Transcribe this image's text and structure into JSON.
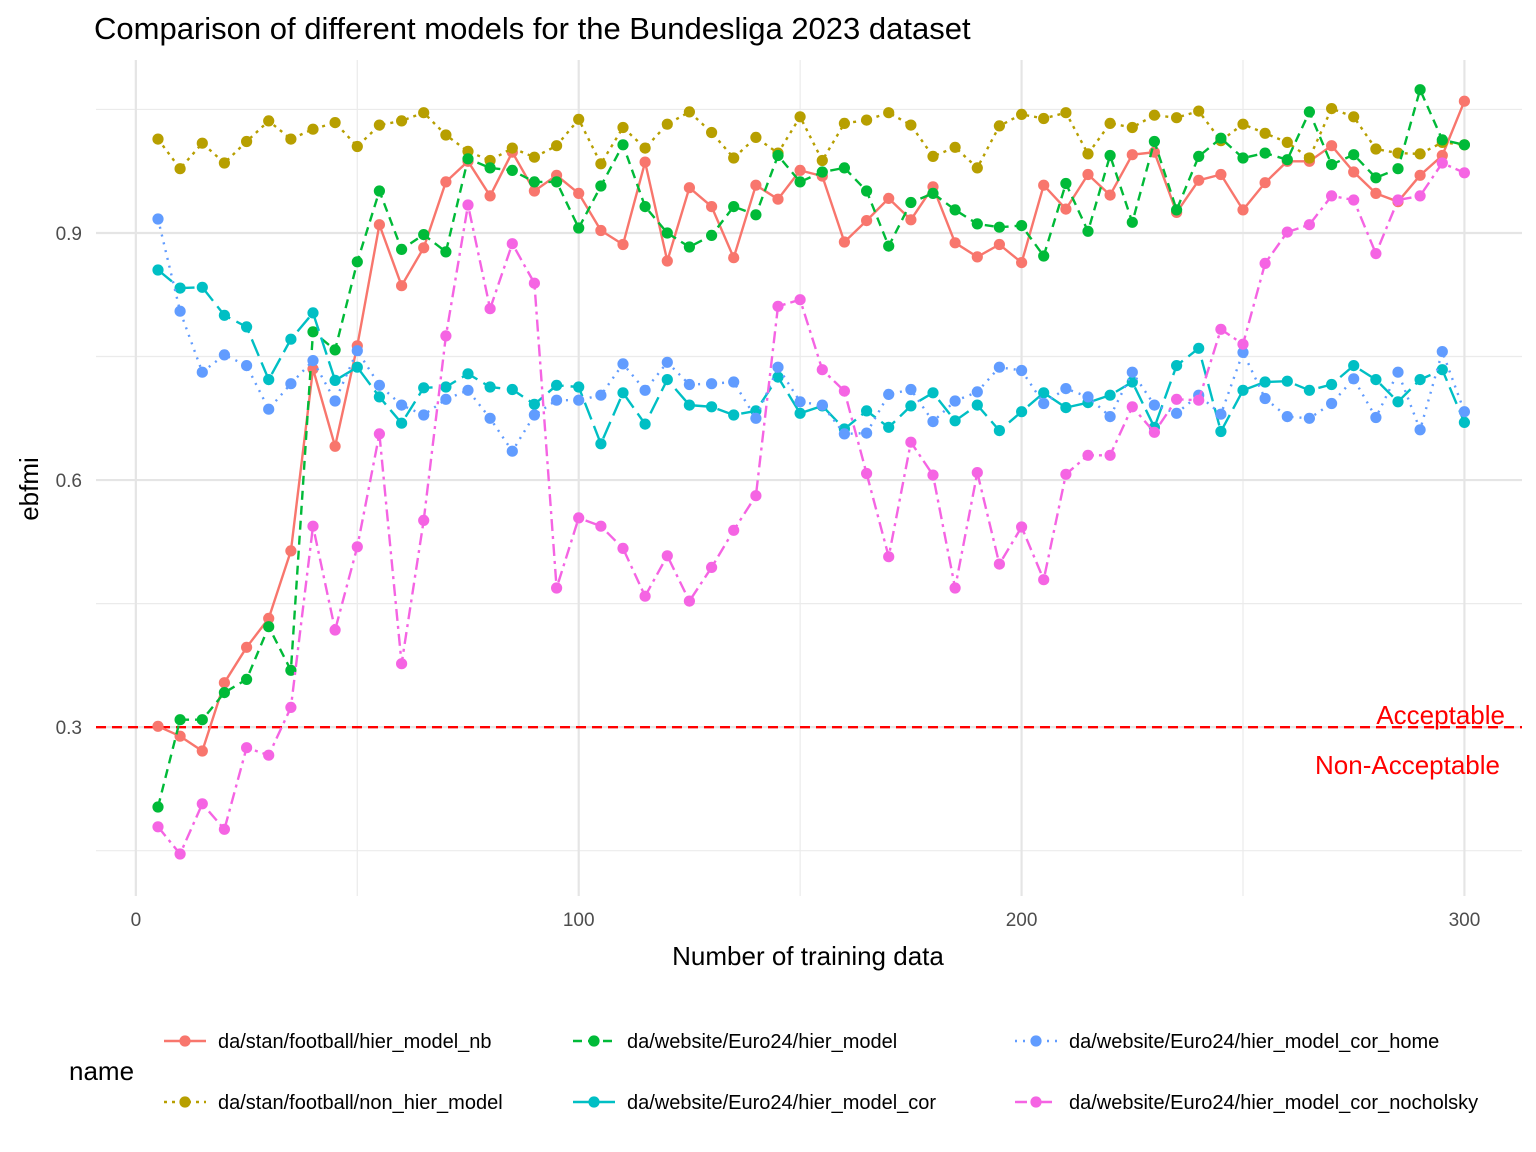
{
  "chart_data": {
    "type": "line",
    "title": "Comparison of different models for the Bundesliga 2023 dataset",
    "xlabel": "Number of training data",
    "ylabel": "ebfmi",
    "xlim": [
      -9,
      313
    ],
    "ylim": [
      0.095,
      1.11
    ],
    "x_ticks": [
      0,
      100,
      200,
      300
    ],
    "x_tick_labels": [
      "0",
      "100",
      "200",
      "300"
    ],
    "y_ticks": [
      0.3,
      0.6,
      0.9
    ],
    "y_tick_labels": [
      "0.3",
      "0.6",
      "0.9"
    ],
    "grid": true,
    "legend_title": "name",
    "legend_position": "bottom",
    "threshold": {
      "value": 0.3,
      "color": "#ff0000",
      "label_above": "Acceptable",
      "label_below": "Non-Acceptable"
    },
    "x": [
      5,
      10,
      15,
      20,
      25,
      30,
      35,
      40,
      45,
      50,
      55,
      60,
      65,
      70,
      75,
      80,
      85,
      90,
      95,
      100,
      105,
      110,
      115,
      120,
      125,
      130,
      135,
      140,
      145,
      150,
      155,
      160,
      165,
      170,
      175,
      180,
      185,
      190,
      195,
      200,
      205,
      210,
      215,
      220,
      225,
      230,
      235,
      240,
      245,
      250,
      255,
      260,
      265,
      270,
      275,
      280,
      285,
      290,
      295,
      300
    ],
    "series": [
      {
        "name": "da/stan/football/hier_model_nb",
        "color": "#F8766D",
        "dash": "solid",
        "values": [
          0.301,
          0.289,
          0.271,
          0.354,
          0.397,
          0.432,
          0.514,
          0.735,
          0.641,
          0.763,
          0.91,
          0.836,
          0.882,
          0.962,
          0.987,
          0.945,
          0.998,
          0.951,
          0.97,
          0.948,
          0.903,
          0.886,
          0.986,
          0.866,
          0.955,
          0.932,
          0.87,
          0.958,
          0.941,
          0.976,
          0.969,
          0.889,
          0.915,
          0.942,
          0.916,
          0.956,
          0.888,
          0.871,
          0.886,
          0.864,
          0.958,
          0.929,
          0.971,
          0.946,
          0.995,
          0.998,
          0.925,
          0.964,
          0.971,
          0.928,
          0.961,
          0.987,
          0.987,
          1.006,
          0.974,
          0.948,
          0.938,
          0.97,
          0.994,
          1.06
        ]
      },
      {
        "name": "da/stan/football/non_hier_model",
        "color": "#B79F00",
        "dash": "3,5",
        "values": [
          1.014,
          0.978,
          1.009,
          0.985,
          1.011,
          1.036,
          1.014,
          1.026,
          1.034,
          1.005,
          1.031,
          1.036,
          1.046,
          1.019,
          0.999,
          0.988,
          1.003,
          0.992,
          1.006,
          1.038,
          0.984,
          1.028,
          1.003,
          1.032,
          1.047,
          1.022,
          0.991,
          1.016,
          0.997,
          1.041,
          0.988,
          1.033,
          1.037,
          1.046,
          1.031,
          0.993,
          1.004,
          0.979,
          1.03,
          1.044,
          1.039,
          1.046,
          0.996,
          1.033,
          1.028,
          1.043,
          1.04,
          1.048,
          1.012,
          1.032,
          1.021,
          1.01,
          0.991,
          1.051,
          1.041,
          1.002,
          0.997,
          0.996,
          1.01,
          1.007
        ]
      },
      {
        "name": "da/website/Euro24/hier_model",
        "color": "#00BA38",
        "dash": "9,6",
        "values": [
          0.203,
          0.309,
          0.309,
          0.342,
          0.358,
          0.422,
          0.369,
          0.78,
          0.758,
          0.865,
          0.951,
          0.88,
          0.898,
          0.877,
          0.99,
          0.979,
          0.976,
          0.962,
          0.962,
          0.906,
          0.957,
          1.007,
          0.932,
          0.9,
          0.883,
          0.897,
          0.932,
          0.922,
          0.994,
          0.962,
          0.974,
          0.979,
          0.951,
          0.884,
          0.937,
          0.948,
          0.928,
          0.911,
          0.907,
          0.909,
          0.872,
          0.96,
          0.902,
          0.994,
          0.913,
          1.011,
          0.928,
          0.993,
          1.015,
          0.991,
          0.997,
          0.989,
          1.047,
          0.983,
          0.995,
          0.967,
          0.978,
          1.074,
          1.013,
          1.007
        ]
      },
      {
        "name": "da/website/Euro24/hier_model_cor",
        "color": "#00BFC4",
        "dash": "18,7",
        "values": [
          0.855,
          0.833,
          0.834,
          0.8,
          0.786,
          0.722,
          0.771,
          0.803,
          0.721,
          0.737,
          0.701,
          0.669,
          0.712,
          0.713,
          0.729,
          0.713,
          0.71,
          0.692,
          0.715,
          0.713,
          0.644,
          0.706,
          0.668,
          0.722,
          0.691,
          0.689,
          0.679,
          0.684,
          0.725,
          0.681,
          0.69,
          0.662,
          0.684,
          0.664,
          0.69,
          0.706,
          0.672,
          0.691,
          0.66,
          0.683,
          0.706,
          0.688,
          0.694,
          0.703,
          0.719,
          0.664,
          0.739,
          0.76,
          0.659,
          0.709,
          0.719,
          0.72,
          0.709,
          0.716,
          0.739,
          0.722,
          0.695,
          0.722,
          0.734,
          0.67
        ]
      },
      {
        "name": "da/website/Euro24/hier_model_cor_home",
        "color": "#619CFF",
        "dash": "2,6",
        "values": [
          0.917,
          0.805,
          0.731,
          0.752,
          0.739,
          0.686,
          0.717,
          0.745,
          0.696,
          0.757,
          0.715,
          0.691,
          0.679,
          0.698,
          0.709,
          0.675,
          0.635,
          0.679,
          0.697,
          0.697,
          0.703,
          0.741,
          0.709,
          0.743,
          0.716,
          0.717,
          0.719,
          0.675,
          0.737,
          0.695,
          0.691,
          0.656,
          0.657,
          0.704,
          0.71,
          0.671,
          0.696,
          0.707,
          0.737,
          0.733,
          0.693,
          0.711,
          0.701,
          0.677,
          0.731,
          0.691,
          0.681,
          0.703,
          0.68,
          0.755,
          0.699,
          0.677,
          0.675,
          0.693,
          0.723,
          0.676,
          0.731,
          0.661,
          0.756,
          0.683
        ]
      },
      {
        "name": "da/website/Euro24/hier_model_cor_nocholsky",
        "color": "#F564E3",
        "dash": "12,5,3,5",
        "values": [
          0.179,
          0.146,
          0.207,
          0.176,
          0.275,
          0.266,
          0.324,
          0.544,
          0.418,
          0.519,
          0.656,
          0.377,
          0.551,
          0.775,
          0.934,
          0.808,
          0.887,
          0.839,
          0.469,
          0.554,
          0.544,
          0.517,
          0.459,
          0.508,
          0.453,
          0.494,
          0.539,
          0.581,
          0.811,
          0.819,
          0.734,
          0.708,
          0.608,
          0.507,
          0.646,
          0.606,
          0.469,
          0.609,
          0.498,
          0.543,
          0.479,
          0.607,
          0.63,
          0.63,
          0.689,
          0.658,
          0.698,
          0.697,
          0.783,
          0.765,
          0.863,
          0.901,
          0.91,
          0.945,
          0.94,
          0.875,
          0.94,
          0.945,
          0.985,
          0.973
        ]
      }
    ]
  }
}
